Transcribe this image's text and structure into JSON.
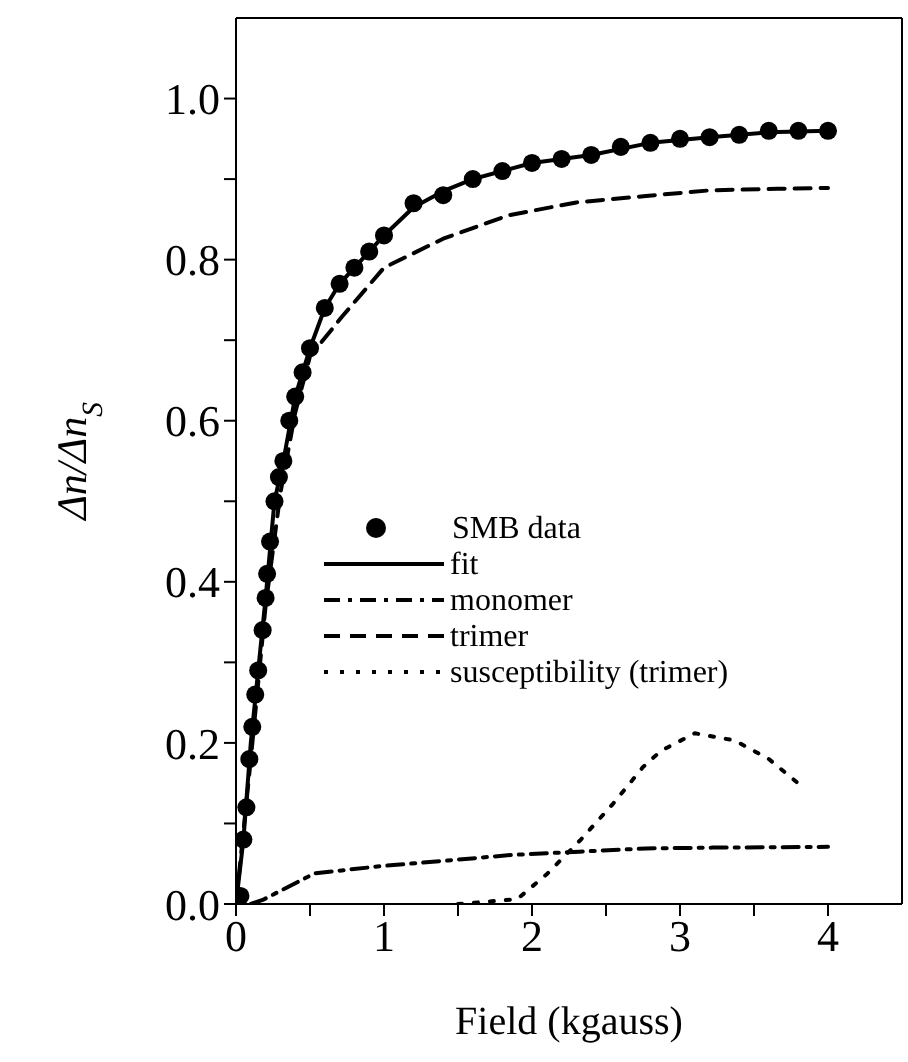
{
  "chart_data": {
    "type": "line",
    "xlabel": "Field (kgauss)",
    "ylabel": "Δn/Δn$_{S}$",
    "xlim": [
      0,
      4.5
    ],
    "ylim": [
      0,
      1.1
    ],
    "xticks": [
      0,
      {
        "value": 0.5,
        "label": null
      },
      1,
      {
        "value": 1.5,
        "label": null
      },
      2,
      {
        "value": 2.5,
        "label": null
      },
      3,
      {
        "value": 3.5,
        "label": null
      },
      4
    ],
    "yticks": [
      {
        "value": 0,
        "label": "0.0"
      },
      {
        "value": 0.1,
        "label": null
      },
      {
        "value": 0.2,
        "label": "0.2"
      },
      {
        "value": 0.3,
        "label": null
      },
      {
        "value": 0.4,
        "label": "0.4"
      },
      {
        "value": 0.5,
        "label": null
      },
      {
        "value": 0.6,
        "label": "0.6"
      },
      {
        "value": 0.7,
        "label": null
      },
      {
        "value": 0.8,
        "label": "0.8"
      },
      {
        "value": 0.9,
        "label": null
      },
      {
        "value": 1.0,
        "label": "1.0"
      }
    ],
    "grid": false,
    "legend": "bottom left",
    "series": [
      {
        "name": "SMB data",
        "type": "scatter",
        "marker": "circle",
        "color": "#000000",
        "x": [
          0.03,
          0.05,
          0.07,
          0.09,
          0.11,
          0.13,
          0.15,
          0.18,
          0.2,
          0.21,
          0.23,
          0.26,
          0.29,
          0.32,
          0.36,
          0.4,
          0.45,
          0.5,
          0.6,
          0.7,
          0.8,
          0.9,
          1.0,
          1.2,
          1.4,
          1.6,
          1.8,
          2.0,
          2.2,
          2.4,
          2.6,
          2.8,
          3.0,
          3.2,
          3.4,
          3.6,
          3.8,
          4.0
        ],
        "values": [
          0.01,
          0.08,
          0.12,
          0.18,
          0.22,
          0.26,
          0.29,
          0.34,
          0.38,
          0.41,
          0.45,
          0.5,
          0.53,
          0.55,
          0.6,
          0.63,
          0.66,
          0.69,
          0.74,
          0.77,
          0.79,
          0.81,
          0.83,
          0.87,
          0.88,
          0.9,
          0.91,
          0.92,
          0.925,
          0.93,
          0.94,
          0.945,
          0.95,
          0.952,
          0.955,
          0.96,
          0.96,
          0.96
        ]
      },
      {
        "name": "fit",
        "type": "line",
        "line_style": "solid",
        "color": "#000000",
        "x": [
          0,
          0.05,
          0.1,
          0.15,
          0.2,
          0.26,
          0.32,
          0.4,
          0.5,
          0.6,
          0.7,
          0.8,
          0.9,
          1.0,
          1.2,
          1.4,
          1.6,
          1.8,
          2.0,
          2.4,
          2.8,
          3.2,
          3.6,
          4.0
        ],
        "values": [
          0,
          0.08,
          0.2,
          0.29,
          0.38,
          0.5,
          0.55,
          0.63,
          0.69,
          0.74,
          0.77,
          0.79,
          0.81,
          0.83,
          0.865,
          0.885,
          0.9,
          0.91,
          0.92,
          0.93,
          0.945,
          0.952,
          0.958,
          0.96
        ]
      },
      {
        "name": "monomer",
        "type": "line",
        "line_style": "dashdot",
        "color": "#000000",
        "x": [
          0.1,
          0.18,
          0.53,
          0.98,
          1.43,
          1.87,
          2.32,
          2.77,
          3.22,
          4.0
        ],
        "values": [
          0,
          0.005,
          0.038,
          0.047,
          0.054,
          0.061,
          0.065,
          0.069,
          0.07,
          0.071
        ]
      },
      {
        "name": "trimer",
        "type": "line",
        "line_style": "dashed",
        "color": "#000000",
        "x": [
          0,
          0.1,
          0.2,
          0.3,
          0.4,
          0.5,
          0.72,
          1.0,
          1.4,
          1.84,
          2.3,
          2.77,
          3.2,
          3.66,
          4.0
        ],
        "values": [
          0,
          0.18,
          0.37,
          0.51,
          0.61,
          0.68,
          0.73,
          0.79,
          0.826,
          0.855,
          0.871,
          0.879,
          0.886,
          0.888,
          0.889
        ]
      },
      {
        "name": "susceptibility (trimer)",
        "type": "line",
        "line_style": "dotted",
        "color": "#000000",
        "x": [
          1.5,
          1.9,
          2.1,
          2.33,
          2.55,
          2.75,
          2.87,
          3.1,
          3.37,
          3.6,
          3.85
        ],
        "values": [
          0,
          0.006,
          0.037,
          0.08,
          0.125,
          0.17,
          0.19,
          0.212,
          0.203,
          0.18,
          0.142
        ]
      }
    ]
  }
}
